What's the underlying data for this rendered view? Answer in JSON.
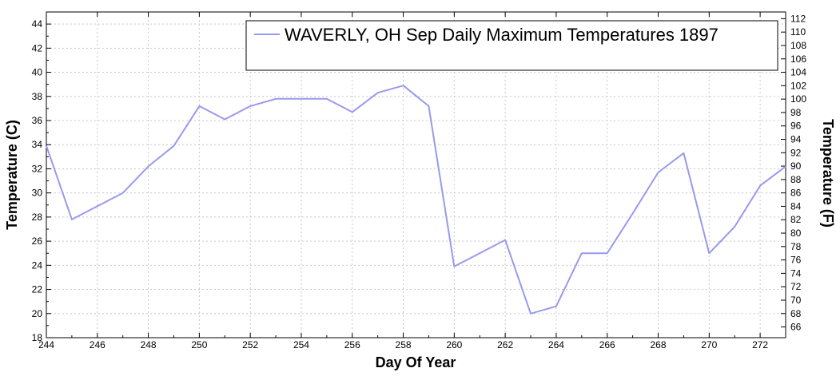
{
  "chart_data": {
    "type": "line",
    "title": "WAVERLY, OH  Sep  Daily Maximum Temperatures 1897",
    "xlabel": "Day Of Year",
    "ylabel_left": "Temperature (C)",
    "ylabel_right": "Temperature (F)",
    "xlim": [
      244,
      273
    ],
    "ylim": [
      18,
      45
    ],
    "xticks": [
      244,
      246,
      248,
      250,
      252,
      254,
      256,
      258,
      260,
      262,
      264,
      266,
      268,
      270,
      272
    ],
    "yticks_left": [
      18,
      20,
      22,
      24,
      26,
      28,
      30,
      32,
      34,
      36,
      38,
      40,
      42,
      44
    ],
    "yticks_right": [
      66,
      68,
      70,
      72,
      74,
      76,
      78,
      80,
      82,
      84,
      86,
      88,
      90,
      92,
      94,
      96,
      98,
      100,
      102,
      104,
      106,
      108,
      110,
      112
    ],
    "grid": true,
    "legend_position": "top-right",
    "series": [
      {
        "name": "WAVERLY, OH  Sep  Daily Maximum Temperatures 1897",
        "color": "#9999ee",
        "x": [
          244,
          245,
          246,
          247,
          248,
          249,
          250,
          251,
          252,
          253,
          254,
          255,
          256,
          257,
          258,
          259,
          260,
          261,
          262,
          263,
          264,
          265,
          266,
          267,
          268,
          269,
          270,
          271,
          272,
          273
        ],
        "y": [
          33.9,
          27.8,
          28.9,
          30.0,
          32.2,
          33.9,
          37.2,
          36.1,
          37.2,
          37.8,
          37.8,
          37.8,
          36.7,
          38.3,
          38.9,
          37.2,
          23.9,
          25.0,
          26.1,
          20.0,
          20.6,
          25.0,
          25.0,
          28.3,
          31.7,
          33.3,
          25.0,
          27.2,
          30.6,
          32.2
        ]
      }
    ]
  }
}
